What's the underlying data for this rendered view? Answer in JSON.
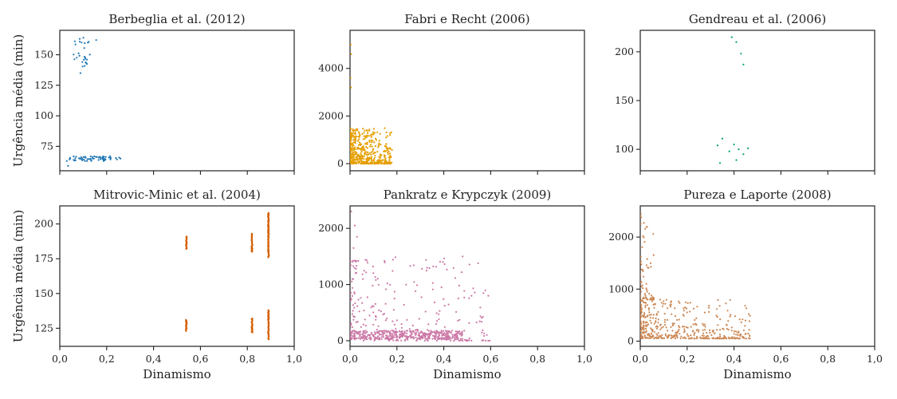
{
  "figure": {
    "shared_xlabel": "Dinamismo",
    "shared_ylabel": "Urgência média (min)"
  },
  "chart_data": [
    {
      "type": "scatter",
      "title": "Berbeglia et al. (2012)",
      "xlabel": "",
      "ylabel": "Urgência média (min)",
      "xlim": [
        0,
        1
      ],
      "ylim": [
        55,
        170
      ],
      "yticks": [
        75,
        100,
        125,
        150
      ],
      "color": "#1f77b4",
      "clusters": [
        {
          "x_range": [
            0.05,
            0.13
          ],
          "y_range": [
            138,
            164
          ],
          "n": 26,
          "extra": [
            [
              0.088,
              135
            ],
            [
              0.155,
              162
            ],
            [
              0.085,
              163
            ]
          ]
        },
        {
          "x_range": [
            0.04,
            0.26
          ],
          "y_range": [
            63,
            67
          ],
          "n": 60,
          "extra": [
            [
              0.03,
              63
            ],
            [
              0.035,
              59
            ]
          ]
        }
      ]
    },
    {
      "type": "scatter",
      "title": "Fabri e Recht (2006)",
      "xlabel": "",
      "ylabel": "",
      "xlim": [
        0,
        1
      ],
      "ylim": [
        -300,
        5600
      ],
      "yticks": [
        0,
        2000,
        4000
      ],
      "color": "#e69f00",
      "clusters": [
        {
          "x_range": [
            0,
            0.18
          ],
          "y_range": [
            0,
            1500
          ],
          "n": 520,
          "decay": true,
          "extra": [
            [
              0.003,
              5000
            ],
            [
              0.005,
              4600
            ],
            [
              0.002,
              3600
            ],
            [
              0.004,
              3200
            ]
          ]
        }
      ]
    },
    {
      "type": "scatter",
      "title": "Gendreau et al. (2006)",
      "xlabel": "",
      "ylabel": "",
      "xlim": [
        0,
        1
      ],
      "ylim": [
        78,
        222
      ],
      "yticks": [
        100,
        150,
        200
      ],
      "color": "#009e73",
      "points": [
        [
          0.39,
          215
        ],
        [
          0.41,
          210
        ],
        [
          0.43,
          198
        ],
        [
          0.44,
          187
        ],
        [
          0.33,
          104
        ],
        [
          0.35,
          111
        ],
        [
          0.38,
          98
        ],
        [
          0.4,
          105
        ],
        [
          0.42,
          100
        ],
        [
          0.44,
          95
        ],
        [
          0.46,
          101
        ],
        [
          0.41,
          89
        ],
        [
          0.34,
          86
        ]
      ]
    },
    {
      "type": "scatter",
      "title": "Mitrovic-Minic et al. (2004)",
      "xlabel": "Dinamismo",
      "ylabel": "Urgência média (min)",
      "xlim": [
        0,
        1
      ],
      "ylim": [
        112,
        213
      ],
      "yticks": [
        125,
        150,
        175,
        200
      ],
      "xticks": [
        "0,0",
        "0,2",
        "0,4",
        "0,6",
        "0,8",
        "1,0"
      ],
      "color": "#d55e00",
      "columns": [
        {
          "x": 0.54,
          "bands": [
            [
              182,
              191
            ],
            [
              123,
              131
            ]
          ]
        },
        {
          "x": 0.82,
          "bands": [
            [
              180,
              193
            ],
            [
              122,
              132
            ]
          ]
        },
        {
          "x": 0.89,
          "bands": [
            [
              176,
              208
            ],
            [
              117,
              138
            ]
          ]
        }
      ]
    },
    {
      "type": "scatter",
      "title": "Pankratz e Krypczyk (2009)",
      "xlabel": "Dinamismo",
      "ylabel": "",
      "xlim": [
        0,
        1
      ],
      "ylim": [
        -100,
        2400
      ],
      "yticks": [
        0,
        1000,
        2000
      ],
      "xticks": [
        "0,0",
        "0,2",
        "0,4",
        "0,6",
        "0,8",
        "1,0"
      ],
      "color": "#cc79a7",
      "clusters": [
        {
          "x_range": [
            0,
            0.48
          ],
          "y_range": [
            20,
            180
          ],
          "n": 420
        },
        {
          "x_range": [
            0,
            0.6
          ],
          "y_range": [
            0,
            1500
          ],
          "n": 260,
          "decay": true,
          "extra": [
            [
              0.005,
              2300
            ],
            [
              0.02,
              2050
            ],
            [
              0.03,
              1850
            ],
            [
              0.015,
              1650
            ]
          ]
        }
      ]
    },
    {
      "type": "scatter",
      "title": "Pureza e Laporte (2008)",
      "xlabel": "Dinamismo",
      "ylabel": "",
      "xlim": [
        0,
        1
      ],
      "ylim": [
        -100,
        2600
      ],
      "yticks": [
        0,
        1000,
        2000
      ],
      "xticks": [
        "0,0",
        "0,2",
        "0,4",
        "0,6",
        "0,8",
        "1,0"
      ],
      "color": "#cc8855",
      "clusters": [
        {
          "x_range": [
            0,
            0.47
          ],
          "y_range": [
            50,
            800
          ],
          "n": 430,
          "decay": true
        },
        {
          "x_range": [
            0,
            0.06
          ],
          "y_range": [
            800,
            2500
          ],
          "n": 70,
          "decay": true
        }
      ]
    }
  ]
}
